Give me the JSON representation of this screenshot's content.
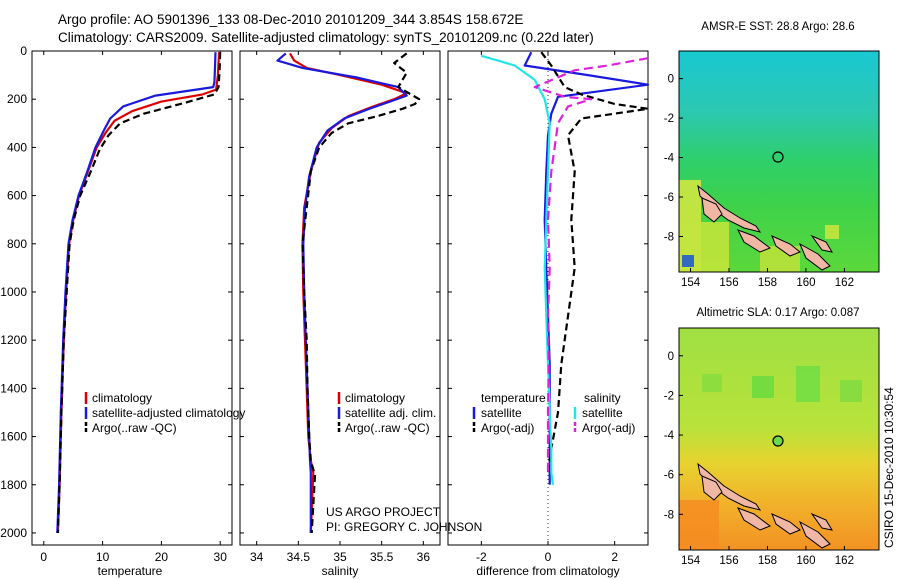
{
  "header": {
    "line1": "Argo profile: AO 5901396_133 08-Dec-2010 20101209_344 3.854S 158.672E",
    "line2": "Climatology: CARS2009. Satellite-adjusted climatology: synTS_20101209.nc (0.22d later)"
  },
  "side_label": "CSIRO 15-Dec-2010 10:30:54",
  "project_note": [
    "US ARGO PROJECT",
    "PI: GREGORY C. JOHNSON"
  ],
  "colors": {
    "climatology": "#dd0000",
    "satellite": "#1a1adc",
    "argo": "#000000",
    "salinity_sat": "#22e6e6",
    "salinity_argo": "#dd22dd"
  },
  "chart_data": [
    {
      "id": "temperature",
      "type": "line",
      "xlabel": "temperature",
      "xlim": [
        -2,
        32
      ],
      "ylim": [
        2050,
        0
      ],
      "yticks": [
        0,
        200,
        400,
        600,
        800,
        1000,
        1200,
        1400,
        1600,
        1800,
        2000
      ],
      "xticks": [
        0,
        10,
        20,
        30
      ],
      "legend": [
        "climatology",
        "satellite-adjusted climatology",
        "Argo(..raw -QC)"
      ],
      "series": [
        {
          "name": "climatology",
          "color": "#dd0000",
          "dash": "",
          "x": [
            29.8,
            29.6,
            29.3,
            27,
            20,
            15,
            12,
            10.5,
            9,
            7.5,
            6,
            5,
            4.3,
            3.8,
            3.4,
            3.0,
            2.7,
            2.4
          ],
          "y": [
            5,
            100,
            160,
            180,
            210,
            250,
            290,
            340,
            400,
            500,
            600,
            700,
            800,
            1000,
            1200,
            1500,
            1800,
            2000
          ]
        },
        {
          "name": "satellite",
          "color": "#1a1adc",
          "dash": "",
          "x": [
            29.2,
            29.1,
            29.0,
            28.8,
            19,
            13.5,
            11.3,
            10.2,
            8.8,
            7.4,
            5.9,
            4.9,
            4.2,
            3.7,
            3.3,
            2.9,
            2.6,
            2.3
          ],
          "y": [
            5,
            80,
            130,
            150,
            185,
            230,
            280,
            330,
            400,
            500,
            600,
            700,
            800,
            1000,
            1200,
            1500,
            1800,
            2000
          ]
        },
        {
          "name": "argo",
          "color": "#000000",
          "dash": "7,4",
          "x": [
            30.0,
            29.9,
            29.7,
            29.0,
            24,
            17,
            13,
            11,
            9.5,
            8,
            6.2,
            5.1,
            4.4,
            3.9,
            3.4,
            3.0,
            2.7,
            2.4
          ],
          "y": [
            5,
            80,
            150,
            180,
            215,
            260,
            300,
            350,
            410,
            500,
            600,
            700,
            800,
            1000,
            1200,
            1500,
            1800,
            2000
          ]
        }
      ]
    },
    {
      "id": "salinity",
      "type": "line",
      "xlabel": "salinity",
      "xlim": [
        33.8,
        36.2
      ],
      "ylim": [
        2050,
        0
      ],
      "xticks": [
        34,
        34.5,
        35,
        35.5,
        36
      ],
      "legend": [
        "climatology",
        "satellite adj. clim.",
        "Argo(..raw -QC)"
      ],
      "series": [
        {
          "name": "climatology",
          "color": "#dd0000",
          "dash": "",
          "x": [
            34.4,
            34.45,
            34.6,
            35.0,
            35.5,
            35.8,
            35.65,
            35.4,
            35.1,
            34.9,
            34.75,
            34.65,
            34.57,
            34.55,
            34.56,
            34.58,
            34.6,
            34.62,
            34.65,
            34.68,
            34.65
          ],
          "y": [
            10,
            40,
            70,
            100,
            140,
            175,
            200,
            230,
            270,
            320,
            380,
            500,
            650,
            800,
            1000,
            1200,
            1400,
            1600,
            1700,
            1750,
            2000
          ]
        },
        {
          "name": "satellite",
          "color": "#1a1adc",
          "dash": "",
          "x": [
            34.35,
            34.25,
            34.55,
            35.2,
            35.7,
            35.8,
            35.6,
            35.35,
            35.05,
            34.85,
            34.72,
            34.63,
            34.58,
            34.56,
            34.57,
            34.59,
            34.61,
            34.63,
            34.64,
            34.65,
            34.65
          ],
          "y": [
            10,
            40,
            70,
            110,
            150,
            185,
            210,
            240,
            280,
            330,
            400,
            520,
            650,
            800,
            1000,
            1200,
            1400,
            1600,
            1700,
            1750,
            2000
          ]
        },
        {
          "name": "argo",
          "color": "#000000",
          "dash": "7,4",
          "x": [
            35.8,
            35.65,
            35.8,
            35.7,
            35.95,
            35.9,
            35.75,
            35.45,
            35.1,
            34.9,
            34.75,
            34.65,
            34.6,
            34.55,
            34.57,
            34.6,
            34.61,
            34.63,
            34.65,
            34.7,
            34.66
          ],
          "y": [
            10,
            50,
            90,
            150,
            200,
            220,
            240,
            270,
            300,
            340,
            400,
            500,
            650,
            800,
            1000,
            1200,
            1400,
            1600,
            1700,
            1760,
            2000
          ]
        }
      ]
    },
    {
      "id": "difference",
      "type": "line",
      "xlabel": "difference from climatology",
      "xlim": [
        -3,
        3
      ],
      "ylim": [
        2050,
        0
      ],
      "xticks": [
        -2,
        0,
        2
      ],
      "legend_temp_title": "temperature",
      "legend_sal_title": "salinity",
      "legend": [
        "satellite",
        "Argo(-adj)",
        "satellite",
        "Argo(-adj)"
      ],
      "series": [
        {
          "name": "temp-satellite",
          "color": "#1a1adc",
          "dash": "",
          "x": [
            -0.5,
            -0.7,
            1.2,
            3.0,
            0.3,
            0.1,
            0.0,
            -0.05,
            -0.1,
            -0.05,
            0.0,
            0.05,
            0.05,
            0.05,
            0.05,
            0.05
          ],
          "y": [
            5,
            60,
            100,
            140,
            190,
            260,
            350,
            500,
            700,
            900,
            1100,
            1300,
            1500,
            1600,
            1700,
            1800
          ]
        },
        {
          "name": "temp-argo",
          "color": "#000000",
          "dash": "7,4",
          "x": [
            -0.2,
            0.1,
            0.5,
            1.0,
            2.0,
            3.0,
            1.0,
            0.6,
            0.8,
            0.7,
            0.8,
            0.6,
            0.4,
            0.3,
            0.1,
            0.0
          ],
          "y": [
            5,
            60,
            150,
            180,
            220,
            240,
            280,
            350,
            500,
            700,
            900,
            1100,
            1300,
            1500,
            1650,
            1750
          ]
        },
        {
          "name": "sal-satellite",
          "color": "#22e6e6",
          "dash": "",
          "x": [
            -2.0,
            -1.5,
            -1.0,
            -0.4,
            -0.1,
            0.05,
            0.0,
            -0.05,
            -0.1,
            -0.05,
            0.0,
            0.05,
            0.1,
            0.1,
            0.15
          ],
          "y": [
            20,
            40,
            60,
            120,
            200,
            300,
            500,
            700,
            900,
            1100,
            1300,
            1500,
            1650,
            1750,
            1800
          ]
        },
        {
          "name": "sal-argo",
          "color": "#dd22dd",
          "dash": "9,5",
          "x": [
            3.0,
            1.8,
            0.8,
            -0.4,
            0.5,
            1.3,
            0.6,
            0.3,
            0.1,
            0.0,
            0.05,
            0.0,
            0.02,
            0.0,
            0.0
          ],
          "y": [
            30,
            60,
            80,
            150,
            190,
            200,
            230,
            300,
            500,
            700,
            900,
            1100,
            1300,
            1500,
            1750
          ]
        }
      ]
    },
    {
      "id": "sst_map",
      "type": "heatmap",
      "title": "AMSR-E SST: 28.8 Argo: 28.6",
      "xticks": [
        154,
        156,
        158,
        160,
        162
      ],
      "yticks": [
        0,
        -2,
        -4,
        -6,
        -8
      ],
      "xlim": [
        153.4,
        163.8
      ],
      "ylim": [
        -9.8,
        1.4
      ],
      "argo_position": {
        "lon": 158.67,
        "lat": -3.85
      }
    },
    {
      "id": "sla_map",
      "type": "heatmap",
      "title": "Altimetric SLA: 0.17 Argo: 0.087",
      "xticks": [
        154,
        156,
        158,
        160,
        162
      ],
      "yticks": [
        0,
        -2,
        -4,
        -6,
        -8
      ],
      "xlim": [
        153.4,
        163.8
      ],
      "ylim": [
        -9.8,
        1.4
      ],
      "argo_position": {
        "lon": 158.67,
        "lat": -3.85
      }
    }
  ]
}
